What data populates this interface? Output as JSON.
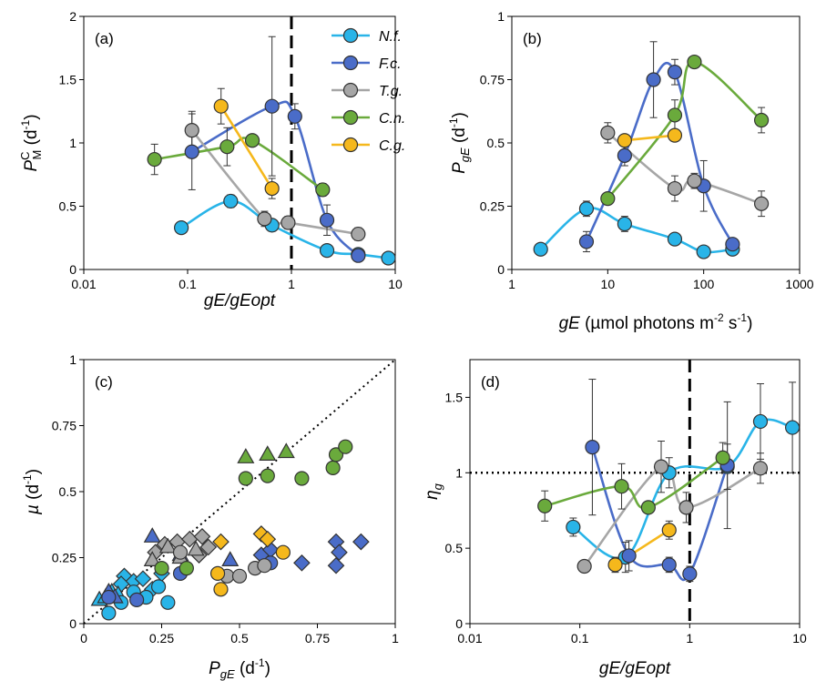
{
  "colors": {
    "Nf": "#29b4e8",
    "Fc": "#4a6cc8",
    "Tg": "#a6a6a6",
    "Cn": "#6aaa3c",
    "Cg": "#f5b81c"
  },
  "chart_data": [
    {
      "panel": "(a)",
      "type": "line",
      "xscale": "log",
      "xlim": [
        0.01,
        10
      ],
      "ylim": [
        0,
        2
      ],
      "xticks": [
        "0.01",
        "0.1",
        "1",
        "10"
      ],
      "yticks": [
        "0",
        "0.5",
        "1",
        "1.5",
        "2"
      ],
      "xlabel": "gE/gEopt",
      "ylabel": "PCM (d-1)",
      "vline_x": 1,
      "legend": "top-right",
      "series": [
        {
          "name": "N.f.",
          "key": "Nf",
          "marker": "circle",
          "x": [
            0.087,
            0.26,
            0.65,
            2.2,
            4.4,
            8.6
          ],
          "y": [
            0.33,
            0.54,
            0.35,
            0.15,
            0.12,
            0.09
          ],
          "err": [
            0,
            0.05,
            0,
            0,
            0,
            0
          ]
        },
        {
          "name": "F.c.",
          "key": "Fc",
          "marker": "circle",
          "x": [
            0.11,
            0.65,
            1.08,
            2.2,
            4.4
          ],
          "y": [
            0.93,
            1.29,
            1.21,
            0.39,
            0.11
          ],
          "err": [
            0.3,
            0.55,
            0.1,
            0.12,
            0
          ]
        },
        {
          "name": "T.g.",
          "key": "Tg",
          "marker": "circle",
          "x": [
            0.11,
            0.55,
            0.93,
            4.4
          ],
          "y": [
            1.1,
            0.4,
            0.37,
            0.28
          ],
          "err": [
            0.15,
            0.06,
            0.05,
            0.05
          ]
        },
        {
          "name": "C.n.",
          "key": "Cn",
          "marker": "circle",
          "x": [
            0.048,
            0.24,
            0.42,
            2.0
          ],
          "y": [
            0.87,
            0.97,
            1.02,
            0.63
          ],
          "err": [
            0.12,
            0.15,
            0,
            0.05
          ]
        },
        {
          "name": "C.g.",
          "key": "Cg",
          "marker": "circle",
          "x": [
            0.21,
            0.65
          ],
          "y": [
            1.29,
            0.64
          ],
          "err": [
            0.14,
            0.08
          ]
        }
      ]
    },
    {
      "panel": "(b)",
      "type": "line",
      "xscale": "log",
      "xlim": [
        1,
        1000
      ],
      "ylim": [
        0,
        1
      ],
      "xticks": [
        "1",
        "10",
        "100",
        "1000"
      ],
      "yticks": [
        "0",
        "0.25",
        "0.5",
        "0.75",
        "1"
      ],
      "xlabel": "gE (µmol photons m-2 s-1)",
      "ylabel": "PgE (d-1)",
      "series": [
        {
          "key": "Nf",
          "marker": "circle",
          "x": [
            2,
            6,
            15,
            50,
            100,
            200
          ],
          "y": [
            0.08,
            0.24,
            0.18,
            0.12,
            0.07,
            0.08
          ],
          "err": [
            0,
            0.03,
            0.03,
            0,
            0,
            0
          ]
        },
        {
          "key": "Fc",
          "marker": "circle",
          "x": [
            6,
            15,
            30,
            50,
            100,
            200
          ],
          "y": [
            0.11,
            0.45,
            0.75,
            0.78,
            0.33,
            0.1
          ],
          "err": [
            0.04,
            0.04,
            0.15,
            0.05,
            0.1,
            0
          ]
        },
        {
          "key": "Tg",
          "marker": "circle",
          "x": [
            10,
            50,
            80,
            400
          ],
          "y": [
            0.54,
            0.32,
            0.35,
            0.26
          ],
          "err": [
            0.04,
            0.05,
            0.03,
            0.05
          ]
        },
        {
          "key": "Cn",
          "marker": "circle",
          "x": [
            10,
            50,
            80,
            400
          ],
          "y": [
            0.28,
            0.61,
            0.82,
            0.59
          ],
          "err": [
            0.02,
            0.06,
            0,
            0.05
          ]
        },
        {
          "key": "Cg",
          "marker": "circle",
          "x": [
            15,
            50
          ],
          "y": [
            0.51,
            0.53
          ],
          "err": [
            0,
            0
          ]
        }
      ]
    },
    {
      "panel": "(c)",
      "type": "scatter",
      "xlim": [
        0,
        1
      ],
      "ylim": [
        0,
        1
      ],
      "xticks": [
        "0",
        "0.25",
        "0.5",
        "0.75",
        "1"
      ],
      "yticks": [
        "0",
        "0.25",
        "0.5",
        "0.75",
        "1"
      ],
      "xlabel": "PgE (d-1)",
      "ylabel": "µ (d-1)",
      "identity_line": true,
      "series": [
        {
          "key": "Nf",
          "marker": "diamond",
          "x": [
            0.13,
            0.16,
            0.19,
            0.12,
            0.22,
            0.25
          ],
          "y": [
            0.18,
            0.16,
            0.17,
            0.15,
            0.13,
            0.19
          ]
        },
        {
          "key": "Nf",
          "marker": "triangle",
          "x": [
            0.05,
            0.07,
            0.09,
            0.11
          ],
          "y": [
            0.09,
            0.1,
            0.12,
            0.11
          ]
        },
        {
          "key": "Nf",
          "marker": "circle",
          "x": [
            0.08,
            0.12,
            0.16,
            0.2,
            0.24,
            0.27
          ],
          "y": [
            0.04,
            0.08,
            0.12,
            0.1,
            0.14,
            0.08
          ]
        },
        {
          "key": "Fc",
          "marker": "diamond",
          "x": [
            0.57,
            0.6,
            0.7,
            0.81,
            0.82,
            0.89,
            0.81
          ],
          "y": [
            0.26,
            0.28,
            0.23,
            0.31,
            0.27,
            0.31,
            0.22
          ]
        },
        {
          "key": "Fc",
          "marker": "triangle",
          "x": [
            0.08,
            0.1,
            0.22,
            0.31,
            0.47
          ],
          "y": [
            0.12,
            0.1,
            0.33,
            0.26,
            0.24
          ]
        },
        {
          "key": "Fc",
          "marker": "circle",
          "x": [
            0.08,
            0.17,
            0.31,
            0.6
          ],
          "y": [
            0.1,
            0.09,
            0.19,
            0.23
          ]
        },
        {
          "key": "Tg",
          "marker": "diamond",
          "x": [
            0.23,
            0.26,
            0.3,
            0.34,
            0.38,
            0.4,
            0.37
          ],
          "y": [
            0.27,
            0.3,
            0.31,
            0.32,
            0.33,
            0.29,
            0.26
          ]
        },
        {
          "key": "Tg",
          "marker": "triangle",
          "x": [
            0.22,
            0.27,
            0.31,
            0.36
          ],
          "y": [
            0.24,
            0.29,
            0.25,
            0.28
          ]
        },
        {
          "key": "Tg",
          "marker": "circle",
          "x": [
            0.31,
            0.46,
            0.5,
            0.55,
            0.58
          ],
          "y": [
            0.27,
            0.18,
            0.18,
            0.21,
            0.22
          ]
        },
        {
          "key": "Cn",
          "marker": "triangle",
          "x": [
            0.52,
            0.59,
            0.65
          ],
          "y": [
            0.63,
            0.64,
            0.65
          ]
        },
        {
          "key": "Cn",
          "marker": "circle",
          "x": [
            0.25,
            0.33,
            0.52,
            0.59,
            0.7,
            0.8,
            0.81,
            0.84
          ],
          "y": [
            0.21,
            0.21,
            0.55,
            0.56,
            0.55,
            0.59,
            0.64,
            0.67
          ]
        },
        {
          "key": "Cg",
          "marker": "diamond",
          "x": [
            0.44,
            0.57,
            0.59
          ],
          "y": [
            0.31,
            0.34,
            0.32
          ]
        },
        {
          "key": "Cg",
          "marker": "circle",
          "x": [
            0.43,
            0.44,
            0.64
          ],
          "y": [
            0.19,
            0.13,
            0.27
          ]
        }
      ]
    },
    {
      "panel": "(d)",
      "type": "line",
      "xscale": "log",
      "xlim": [
        0.01,
        10
      ],
      "ylim": [
        0,
        1.75
      ],
      "xticks": [
        "0.01",
        "0.1",
        "1",
        "10"
      ],
      "yticks": [
        "0",
        "0.5",
        "1",
        "1.5"
      ],
      "xlabel": "gE/gEopt",
      "ylabel": "ηg",
      "vline_x": 1,
      "hline_y": 1,
      "series": [
        {
          "key": "Nf",
          "marker": "circle",
          "x": [
            0.087,
            0.26,
            0.65,
            2.2,
            4.4,
            8.6
          ],
          "y": [
            0.64,
            0.44,
            1.0,
            1.04,
            1.34,
            1.3
          ],
          "err": [
            0.06,
            0.1,
            0.1,
            0.15,
            0.25,
            0.3
          ]
        },
        {
          "key": "Fc",
          "marker": "circle",
          "x": [
            0.13,
            0.28,
            0.65,
            1.0,
            2.2
          ],
          "y": [
            1.17,
            0.45,
            0.39,
            0.33,
            1.05
          ],
          "err": [
            0.45,
            0.1,
            0.05,
            0.05,
            0.42
          ]
        },
        {
          "key": "Tg",
          "marker": "circle",
          "x": [
            0.11,
            0.55,
            0.93,
            4.4
          ],
          "y": [
            0.38,
            1.04,
            0.77,
            1.03
          ],
          "err": [
            0,
            0.17,
            0.1,
            0.1
          ]
        },
        {
          "key": "Cn",
          "marker": "circle",
          "x": [
            0.048,
            0.24,
            0.42,
            2.0
          ],
          "y": [
            0.78,
            0.91,
            0.77,
            1.1
          ],
          "err": [
            0.1,
            0.15,
            0,
            0.1
          ]
        },
        {
          "key": "Cg",
          "marker": "circle",
          "x": [
            0.21,
            0.65
          ],
          "y": [
            0.39,
            0.62
          ],
          "err": [
            0.05,
            0.06
          ]
        }
      ]
    }
  ]
}
